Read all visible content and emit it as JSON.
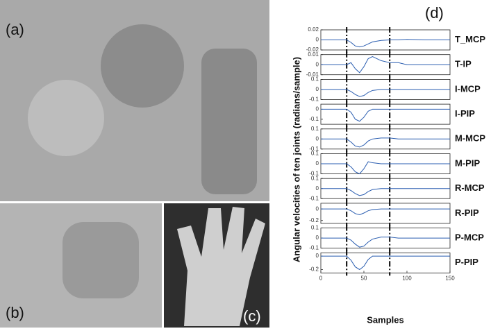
{
  "panel_labels": [
    "(a)",
    "(b)",
    "(c)",
    "(d)"
  ],
  "ylabel": "Angular velocities of ten joints (radians/sample)",
  "xlabel": "Samples",
  "chart_data": [
    {
      "type": "line",
      "title": "T_MCP",
      "x": [
        0,
        10,
        20,
        30,
        35,
        40,
        45,
        50,
        55,
        60,
        70,
        80,
        90,
        100,
        120,
        150
      ],
      "values": [
        0,
        0,
        0,
        0,
        -0.005,
        -0.012,
        -0.014,
        -0.012,
        -0.008,
        -0.004,
        -0.001,
        0,
        0,
        0.001,
        0,
        0
      ],
      "ylim": [
        -0.02,
        0.02
      ],
      "yticks": [
        -0.02,
        0,
        0.02
      ],
      "xlim": [
        0,
        150
      ],
      "vlines": [
        30,
        80
      ],
      "color": "#2a5db0"
    },
    {
      "type": "line",
      "title": "T-IP",
      "x": [
        0,
        10,
        20,
        30,
        35,
        40,
        45,
        50,
        55,
        60,
        70,
        80,
        90,
        100,
        120,
        150
      ],
      "values": [
        0,
        0,
        0,
        0,
        0.002,
        -0.004,
        -0.008,
        -0.002,
        0.006,
        0.008,
        0.004,
        0.002,
        0.002,
        0,
        0,
        0
      ],
      "ylim": [
        -0.01,
        0.01
      ],
      "yticks": [
        -0.01,
        0,
        0.01
      ],
      "xlim": [
        0,
        150
      ],
      "vlines": [
        30,
        80
      ],
      "color": "#2a5db0"
    },
    {
      "type": "line",
      "title": "I-MCP",
      "x": [
        0,
        10,
        20,
        30,
        35,
        40,
        45,
        50,
        55,
        60,
        70,
        80,
        90,
        100,
        120,
        150
      ],
      "values": [
        0,
        0,
        0,
        0,
        -0.02,
        -0.05,
        -0.07,
        -0.06,
        -0.03,
        -0.01,
        0,
        0,
        0,
        0,
        0,
        0
      ],
      "ylim": [
        -0.1,
        0.1
      ],
      "yticks": [
        -0.1,
        0,
        0.1
      ],
      "xlim": [
        0,
        150
      ],
      "vlines": [
        30,
        80
      ],
      "color": "#2a5db0"
    },
    {
      "type": "line",
      "title": "I-PIP",
      "x": [
        0,
        10,
        20,
        30,
        35,
        40,
        45,
        50,
        55,
        60,
        70,
        80,
        90,
        100,
        120,
        150
      ],
      "values": [
        0,
        0,
        0,
        0,
        -0.03,
        -0.1,
        -0.12,
        -0.08,
        -0.02,
        0,
        0,
        0,
        0,
        0,
        0,
        0
      ],
      "ylim": [
        -0.15,
        0.05
      ],
      "yticks": [
        -0.1,
        0
      ],
      "xlim": [
        0,
        150
      ],
      "vlines": [
        30,
        80
      ],
      "color": "#2a5db0"
    },
    {
      "type": "line",
      "title": "M-MCP",
      "x": [
        0,
        10,
        20,
        30,
        35,
        40,
        45,
        50,
        55,
        60,
        70,
        80,
        90,
        100,
        120,
        150
      ],
      "values": [
        0,
        0,
        0,
        0,
        -0.03,
        -0.07,
        -0.08,
        -0.06,
        -0.02,
        0,
        0.01,
        0.01,
        0,
        0,
        0,
        0
      ],
      "ylim": [
        -0.1,
        0.1
      ],
      "yticks": [
        -0.1,
        0,
        0.1
      ],
      "xlim": [
        0,
        150
      ],
      "vlines": [
        30,
        80
      ],
      "color": "#2a5db0"
    },
    {
      "type": "line",
      "title": "M-PIP",
      "x": [
        0,
        10,
        20,
        30,
        35,
        40,
        45,
        50,
        55,
        60,
        70,
        80,
        90,
        100,
        120,
        150
      ],
      "values": [
        0,
        0,
        0,
        0,
        -0.03,
        -0.08,
        -0.1,
        -0.05,
        0.02,
        0.01,
        0,
        0,
        0,
        0,
        0,
        0
      ],
      "ylim": [
        -0.1,
        0.1
      ],
      "yticks": [
        -0.1,
        0,
        0.1
      ],
      "xlim": [
        0,
        150
      ],
      "vlines": [
        30,
        80
      ],
      "color": "#2a5db0"
    },
    {
      "type": "line",
      "title": "R-MCP",
      "x": [
        0,
        10,
        20,
        30,
        35,
        40,
        45,
        50,
        55,
        60,
        70,
        80,
        90,
        100,
        120,
        150
      ],
      "values": [
        0,
        0,
        0,
        0,
        -0.02,
        -0.05,
        -0.07,
        -0.06,
        -0.03,
        -0.01,
        0,
        0,
        0,
        0,
        0,
        0
      ],
      "ylim": [
        -0.1,
        0.1
      ],
      "yticks": [
        -0.1,
        0,
        0.1
      ],
      "xlim": [
        0,
        150
      ],
      "vlines": [
        30,
        80
      ],
      "color": "#2a5db0"
    },
    {
      "type": "line",
      "title": "R-PIP",
      "x": [
        0,
        10,
        20,
        30,
        35,
        40,
        45,
        50,
        55,
        60,
        70,
        80,
        90,
        100,
        120,
        150
      ],
      "values": [
        0,
        0,
        0,
        0,
        -0.03,
        -0.08,
        -0.1,
        -0.07,
        -0.03,
        -0.01,
        0,
        0,
        0,
        0,
        0,
        0
      ],
      "ylim": [
        -0.25,
        0.1
      ],
      "yticks": [
        -0.2,
        0
      ],
      "xlim": [
        0,
        150
      ],
      "vlines": [
        30,
        80
      ],
      "color": "#2a5db0"
    },
    {
      "type": "line",
      "title": "P-MCP",
      "x": [
        0,
        10,
        20,
        30,
        35,
        40,
        45,
        50,
        55,
        60,
        70,
        80,
        90,
        100,
        120,
        150
      ],
      "values": [
        0,
        0,
        0,
        0,
        -0.02,
        -0.06,
        -0.09,
        -0.08,
        -0.04,
        -0.01,
        0.01,
        0.01,
        0,
        0,
        0,
        0
      ],
      "ylim": [
        -0.1,
        0.1
      ],
      "yticks": [
        -0.1,
        0,
        0.1
      ],
      "xlim": [
        0,
        150
      ],
      "vlines": [
        30,
        80
      ],
      "color": "#2a5db0"
    },
    {
      "type": "line",
      "title": "P-PIP",
      "x": [
        0,
        10,
        20,
        30,
        35,
        40,
        45,
        50,
        55,
        60,
        70,
        80,
        90,
        100,
        120,
        150
      ],
      "values": [
        0,
        0,
        0,
        0,
        -0.06,
        -0.16,
        -0.2,
        -0.15,
        -0.05,
        0,
        0,
        0,
        0,
        0,
        0,
        0
      ],
      "ylim": [
        -0.25,
        0.05
      ],
      "yticks": [
        -0.2,
        0
      ],
      "xlim": [
        0,
        150
      ],
      "xticks": [
        0,
        50,
        100,
        150
      ],
      "vlines": [
        30,
        80
      ],
      "color": "#2a5db0"
    }
  ]
}
